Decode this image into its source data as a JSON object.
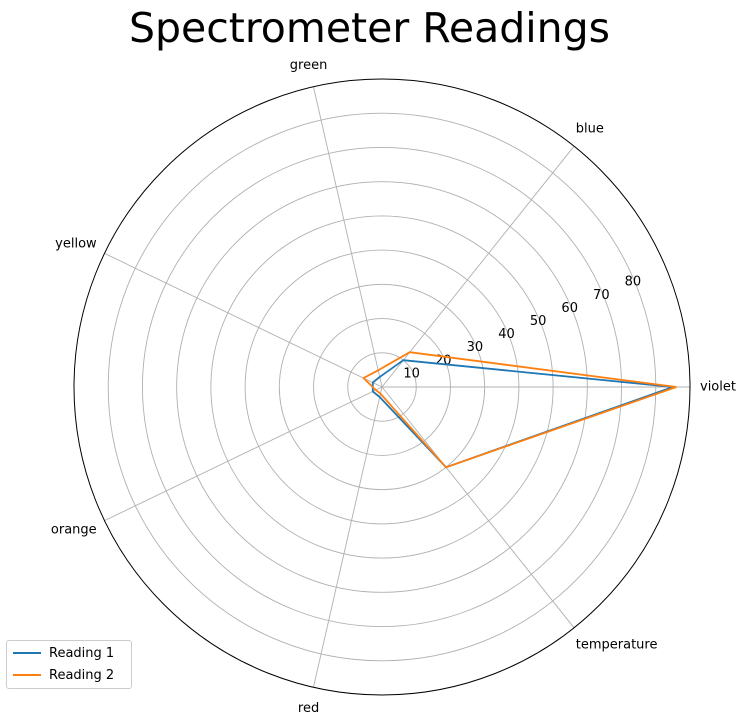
{
  "chart_data": {
    "type": "radar",
    "title": "Spectrometer Readings",
    "categories": [
      "violet",
      "blue",
      "green",
      "yellow",
      "orange",
      "red",
      "temperature"
    ],
    "radial_ticks": [
      10,
      20,
      30,
      40,
      50,
      60,
      70,
      80
    ],
    "rlim": [
      0,
      90
    ],
    "grid": true,
    "legend_position": "lower-left",
    "series": [
      {
        "name": "Reading 1",
        "color": "#1f77b4",
        "values": [
          85,
          10,
          3,
          3,
          3,
          3,
          30
        ]
      },
      {
        "name": "Reading 2",
        "color": "#ff7f0e",
        "values": [
          86,
          13,
          5,
          6,
          2,
          2,
          30
        ]
      }
    ]
  }
}
